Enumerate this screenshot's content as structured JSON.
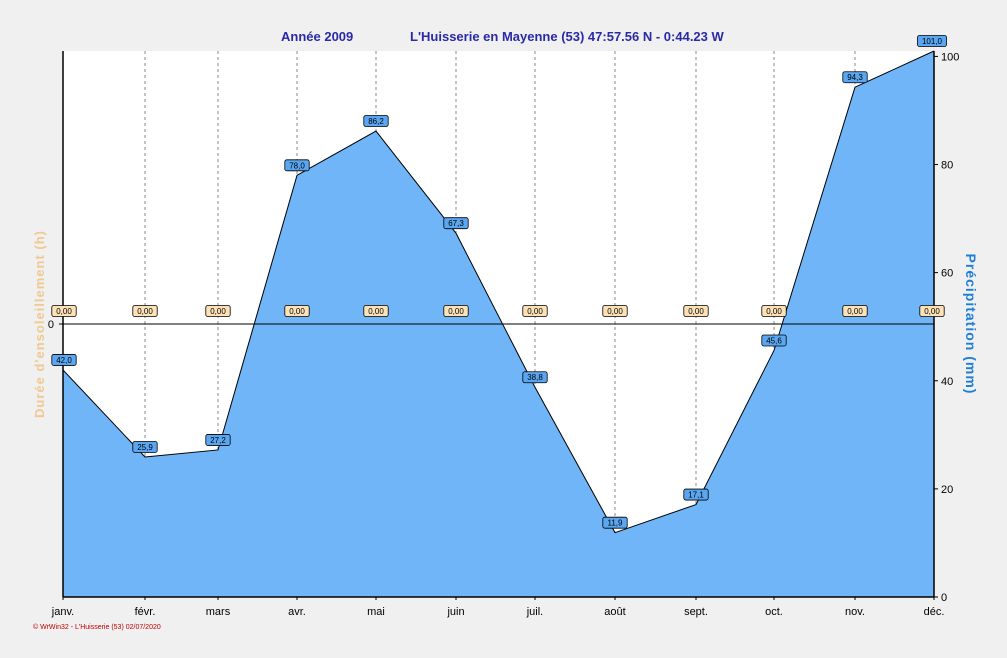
{
  "title_left": "Année  2009",
  "title_right": "L'Huisserie en Mayenne (53) 47:57.56 N - 0:44.23 W",
  "credit": "© WrWin32 - L'Huisserie (53)  02/07/2020",
  "colors": {
    "fill": "#6fb5f7",
    "precip_label": "#5aa6f0",
    "sun_label": "#fde2b8",
    "right_axis_title": "#1e7fd6",
    "left_axis_title": "#f0c890",
    "title": "#2a2aa8"
  },
  "chart_data": {
    "type": "area",
    "categories": [
      "janv.",
      "févr.",
      "mars",
      "avr.",
      "mai",
      "juin",
      "juil.",
      "août",
      "sept.",
      "oct.",
      "nov.",
      "déc."
    ],
    "series": [
      {
        "name": "Précipitation  (mm)",
        "axis": "right",
        "values": [
          42.0,
          25.9,
          27.2,
          78.0,
          86.2,
          67.3,
          38.8,
          11.9,
          17.1,
          45.6,
          94.3,
          101.0
        ],
        "labels": [
          "42,0",
          "25,9",
          "27,2",
          "78,0",
          "86,2",
          "67,3",
          "38,8",
          "11,9",
          "17,1",
          "45,6",
          "94,3",
          "101,0"
        ]
      },
      {
        "name": "Durée d'ensoleillement  (h)",
        "axis": "left",
        "values": [
          0,
          0,
          0,
          0,
          0,
          0,
          0,
          0,
          0,
          0,
          0,
          0
        ],
        "labels": [
          "0,00",
          "0,00",
          "0,00",
          "0,00",
          "0,00",
          "0,00",
          "0,00",
          "0,00",
          "0,00",
          "0,00",
          "0,00",
          "0,00"
        ]
      }
    ],
    "y_right": {
      "label": "Précipitation  (mm)",
      "min": 0,
      "max": 101,
      "ticks": [
        0,
        20,
        40,
        60,
        80,
        100
      ]
    },
    "y_left": {
      "label": "Durée d'ensoleillement  (h)",
      "ticks": [
        0
      ]
    },
    "grid": "vertical-dashed"
  }
}
